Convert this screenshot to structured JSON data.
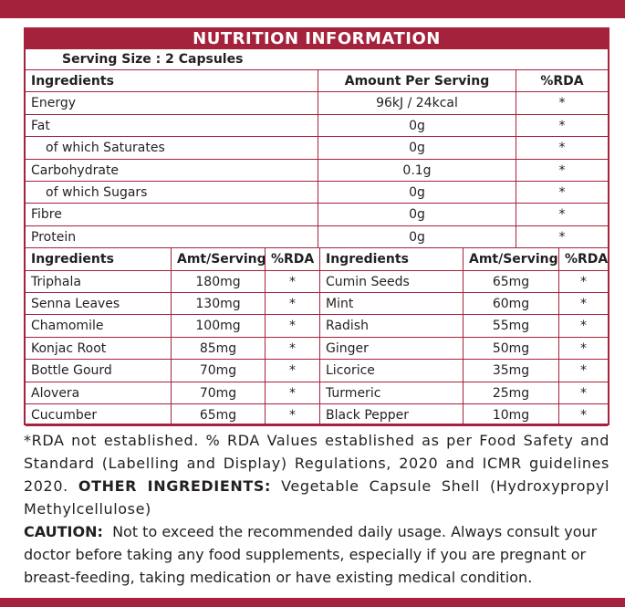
{
  "title": "NUTRITION INFORMATION",
  "serving_size": "Serving Size : 2 Capsules",
  "nutrition_table": {
    "header": [
      "Ingredients",
      "Amount Per Serving",
      "%RDA"
    ],
    "rows": [
      [
        "Energy",
        "96kJ / 24kcal",
        "*"
      ],
      [
        "Fat",
        "0g",
        "*"
      ],
      [
        "of which Saturates",
        "0g",
        "*"
      ],
      [
        "Carbohydrate",
        "0.1g",
        "*"
      ],
      [
        "of which Sugars",
        "0g",
        "*"
      ],
      [
        "Fibre",
        "0g",
        "*"
      ],
      [
        "Protein",
        "0g",
        "*"
      ]
    ]
  },
  "ingredients_table": {
    "header": [
      "Ingredients",
      "Amt/Serving",
      "%RDA",
      "Ingredients",
      "Amt/Serving",
      "%RDA"
    ],
    "rows": [
      [
        "Triphala",
        "180mg",
        "*",
        "Cumin Seeds",
        "65mg",
        "*"
      ],
      [
        "Senna Leaves",
        "130mg",
        "*",
        "Mint",
        "60mg",
        "*"
      ],
      [
        "Chamomile",
        "100mg",
        "*",
        "Radish",
        "55mg",
        "*"
      ],
      [
        "Konjac Root",
        "85mg",
        "*",
        "Ginger",
        "50mg",
        "*"
      ],
      [
        "Bottle Gourd",
        "70mg",
        "*",
        "Licorice",
        "35mg",
        "*"
      ],
      [
        "Alovera",
        "70mg",
        "*",
        "Turmeric",
        "25mg",
        "*"
      ],
      [
        "Cucumber",
        "65mg",
        "*",
        "Black Pepper",
        "10mg",
        "*"
      ]
    ]
  },
  "footnote": {
    "text": "*RDA not established. % RDA Values established as per Food Safety and Standard (Labelling and Display) Regulations, 2020 and ICMR guidelines 2020.",
    "label": "OTHER INGREDIENTS:",
    "detail": "Vegetable Capsule Shell (Hydroxypropyl Methylcellulose)"
  },
  "caution": {
    "label": "CAUTION:",
    "text": "Not to exceed the recommended daily usage. Always consult your doctor before taking any food supplements, especially if you are pregnant or breast-feeding, taking medication or have existing medical condition."
  }
}
